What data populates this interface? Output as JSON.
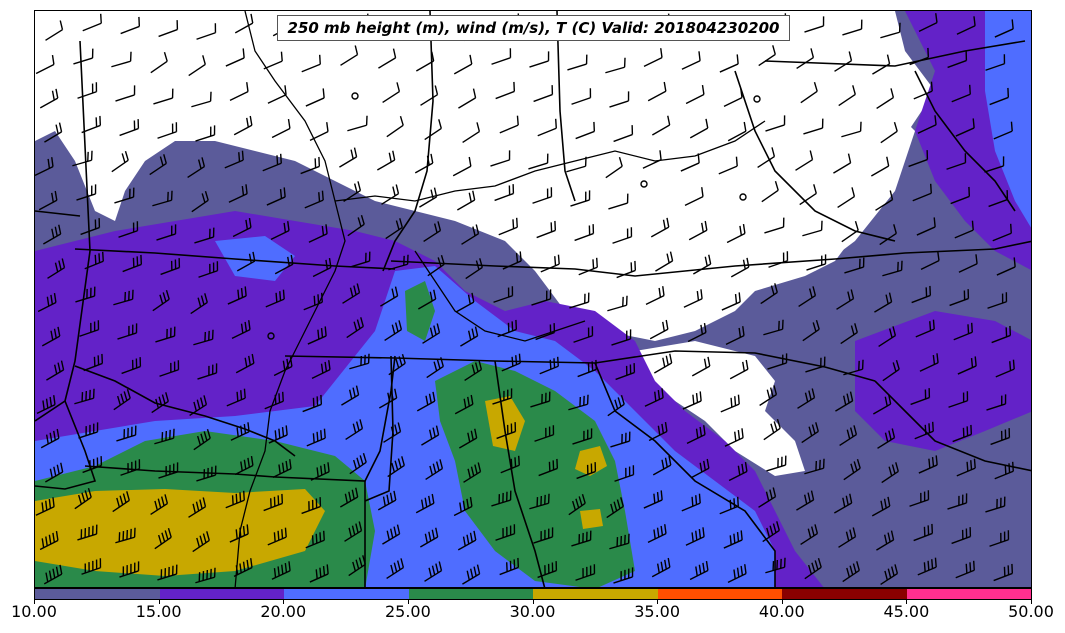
{
  "title": "250 mb height (m), wind (m/s), T (C) Valid: 201804230200",
  "colorbar": {
    "ticks": [
      "10.00",
      "15.00",
      "20.00",
      "25.00",
      "30.00",
      "35.00",
      "40.00",
      "45.00",
      "50.00"
    ],
    "colors": [
      "#5b5b9a",
      "#6322c8",
      "#4f6dff",
      "#2a8a4a",
      "#c8a800",
      "#ff4f00",
      "#8a0000",
      "#ff2f8f"
    ]
  },
  "icons": {
    "barb": "wind-barb-icon",
    "calm": "calm-wind-circle-icon"
  }
}
